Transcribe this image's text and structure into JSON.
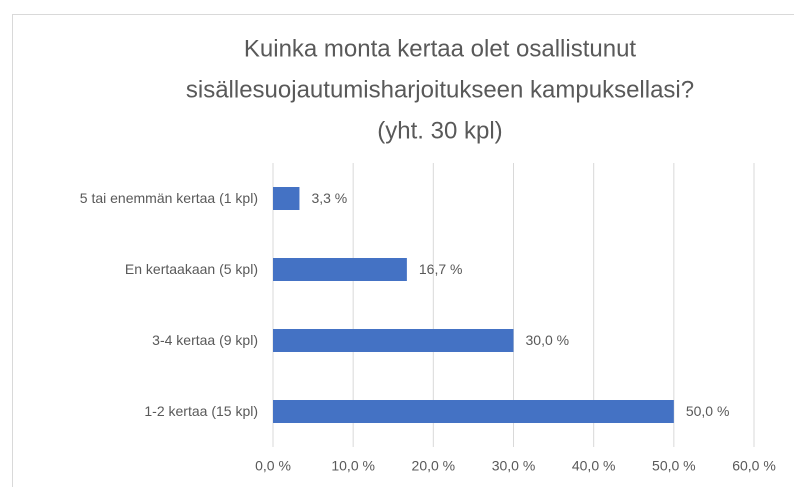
{
  "chart_data": {
    "type": "hbar",
    "title": [
      "Kuinka monta kertaa olet osallistunut",
      "sisällesuojautumisharjoitukseen  kampuksellasi?",
      "(yht. 30 kpl)"
    ],
    "categories": [
      "5 tai enemmän kertaa (1 kpl)",
      "En kertaakaan (5 kpl)",
      "3-4 kertaa (9 kpl)",
      "1-2 kertaa (15 kpl)"
    ],
    "values": [
      3.3,
      16.7,
      30.0,
      50.0
    ],
    "value_labels": [
      "3,3 %",
      "16,7 %",
      "30,0 %",
      "50,0 %"
    ],
    "color": "#4472c4",
    "xlim": [
      0,
      60
    ],
    "xticks": [
      {
        "value": 0,
        "label": "0,0 %"
      },
      {
        "value": 10,
        "label": "10,0 %"
      },
      {
        "value": 20,
        "label": "20,0 %"
      },
      {
        "value": 30,
        "label": "30,0 %"
      },
      {
        "value": 40,
        "label": "40,0 %"
      },
      {
        "value": 50,
        "label": "50,0 %"
      },
      {
        "value": 60,
        "label": "60,0 %"
      }
    ],
    "grid": true
  }
}
